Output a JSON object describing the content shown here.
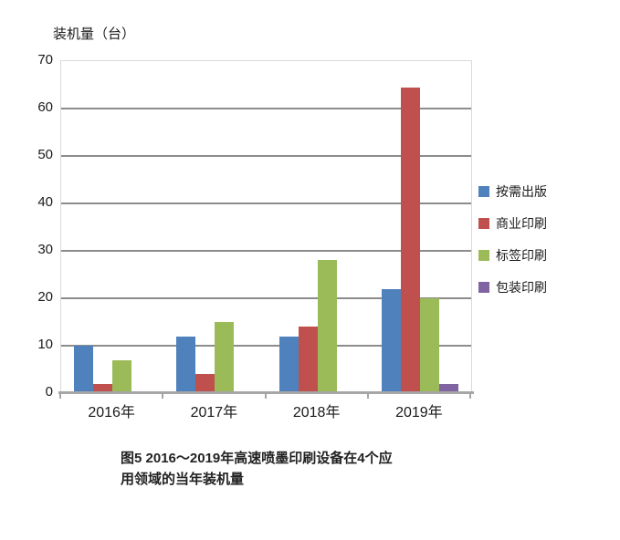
{
  "colors": {
    "background": "#ffffff",
    "gridline": "#8c8c8c",
    "axis_line": "#a6a6a6",
    "plot_border": "#d9d9d9",
    "text": "#1a1a1a"
  },
  "axis_title": "装机量（台）",
  "chart_data": {
    "type": "bar",
    "title": "",
    "xlabel": "",
    "ylabel": "装机量（台）",
    "categories": [
      "2016年",
      "2017年",
      "2018年",
      "2019年"
    ],
    "series": [
      {
        "name": "按需出版",
        "color": "#4F81BD",
        "values": [
          10,
          12,
          12,
          22
        ]
      },
      {
        "name": "商业印刷",
        "color": "#C0504D",
        "values": [
          2,
          4,
          14,
          64.5
        ]
      },
      {
        "name": "标签印刷",
        "color": "#9BBB59",
        "values": [
          7,
          15,
          28,
          20
        ]
      },
      {
        "name": "包装印刷",
        "color": "#8064A2",
        "values": [
          0,
          0,
          0,
          2
        ]
      }
    ],
    "ylim": [
      0,
      70
    ],
    "ytick_step": 10,
    "grid": true,
    "legend_position": "right"
  },
  "caption": {
    "line1": "图5  2016～2019年高速喷墨印刷设备在4个应",
    "line2": "用领域的当年装机量"
  }
}
